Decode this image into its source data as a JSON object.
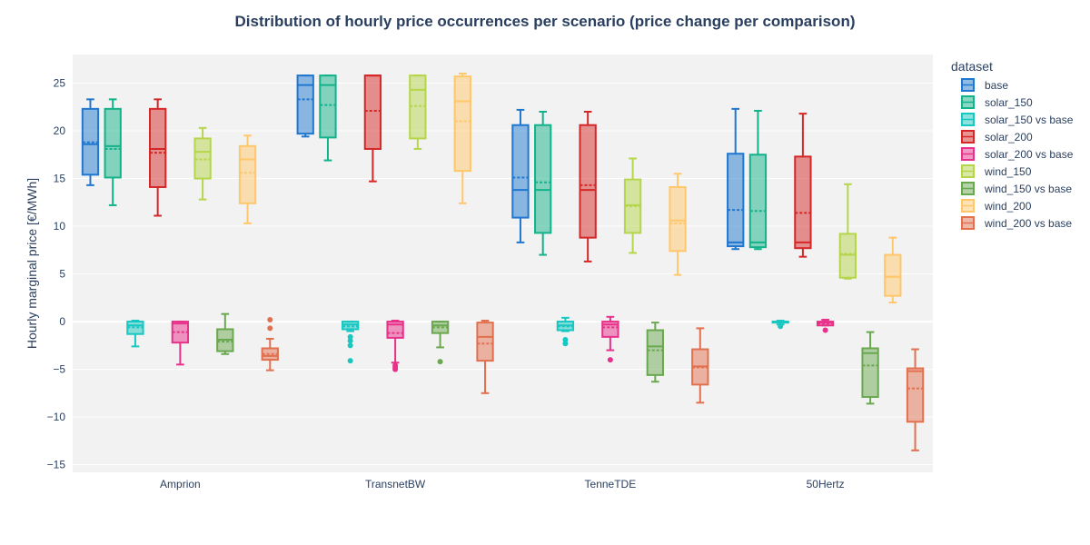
{
  "chart_data": {
    "type": "box",
    "title": "Distribution of hourly price occurrences per scenario (price change per comparison)",
    "ylabel": "Hourly marginal price [€/MWh]",
    "xlabel": "",
    "ylim": [
      -15.8,
      28
    ],
    "yticks": [
      -15,
      -10,
      -5,
      0,
      5,
      10,
      15,
      20,
      25
    ],
    "grid": true,
    "legend_title": "dataset",
    "legend_position": "right",
    "categories": [
      "Amprion",
      "TransnetBW",
      "TenneTDE",
      "50Hertz"
    ],
    "series": [
      {
        "name": "base",
        "color": "#1f77d0",
        "boxes": [
          {
            "min": 14.3,
            "q1": 15.4,
            "median": 18.6,
            "mean": 18.8,
            "q3": 22.3,
            "max": 23.3,
            "outliers": []
          },
          {
            "min": 19.4,
            "q1": 19.7,
            "median": 24.8,
            "mean": 23.3,
            "q3": 25.8,
            "max": 25.8,
            "outliers": []
          },
          {
            "min": 8.3,
            "q1": 10.9,
            "median": 13.8,
            "mean": 15.1,
            "q3": 20.6,
            "max": 22.2,
            "outliers": []
          },
          {
            "min": 7.6,
            "q1": 7.9,
            "median": 8.3,
            "mean": 11.7,
            "q3": 17.6,
            "max": 22.3,
            "outliers": []
          }
        ]
      },
      {
        "name": "solar_150",
        "color": "#12b28a",
        "boxes": [
          {
            "min": 12.2,
            "q1": 15.1,
            "median": 18.4,
            "mean": 18.1,
            "q3": 22.3,
            "max": 23.3,
            "outliers": []
          },
          {
            "min": 16.9,
            "q1": 19.3,
            "median": 24.8,
            "mean": 22.7,
            "q3": 25.8,
            "max": 25.8,
            "outliers": []
          },
          {
            "min": 7.0,
            "q1": 9.3,
            "median": 13.8,
            "mean": 14.6,
            "q3": 20.6,
            "max": 22.0,
            "outliers": []
          },
          {
            "min": 7.6,
            "q1": 7.8,
            "median": 8.3,
            "mean": 11.6,
            "q3": 17.5,
            "max": 22.1,
            "outliers": []
          }
        ]
      },
      {
        "name": "solar_150 vs base",
        "color": "#17c7c2",
        "boxes": [
          {
            "min": -2.6,
            "q1": -1.3,
            "median": -0.4,
            "mean": -0.6,
            "q3": 0.0,
            "max": 0.1,
            "outliers": []
          },
          {
            "min": -1.0,
            "q1": -0.8,
            "median": -0.3,
            "mean": -0.5,
            "q3": 0.0,
            "max": 0.0,
            "outliers": [
              -1.6,
              -2.0,
              -2.5,
              -4.1
            ]
          },
          {
            "min": -1.0,
            "q1": -0.9,
            "median": -0.4,
            "mean": -0.5,
            "q3": 0.0,
            "max": 0.4,
            "outliers": [
              -1.9,
              -2.3
            ]
          },
          {
            "min": -0.3,
            "q1": -0.1,
            "median": 0.0,
            "mean": -0.1,
            "q3": 0.0,
            "max": 0.1,
            "outliers": [
              -0.5
            ]
          }
        ]
      },
      {
        "name": "solar_200",
        "color": "#d62728",
        "boxes": [
          {
            "min": 11.1,
            "q1": 14.1,
            "median": 18.1,
            "mean": 17.7,
            "q3": 22.3,
            "max": 23.3,
            "outliers": []
          },
          {
            "min": 14.7,
            "q1": 18.1,
            "median": 25.8,
            "mean": 22.1,
            "q3": 25.8,
            "max": 25.8,
            "outliers": []
          },
          {
            "min": 6.3,
            "q1": 8.8,
            "median": 13.8,
            "mean": 14.3,
            "q3": 20.6,
            "max": 22.0,
            "outliers": []
          },
          {
            "min": 6.8,
            "q1": 7.7,
            "median": 8.3,
            "mean": 11.4,
            "q3": 17.3,
            "max": 21.8,
            "outliers": []
          }
        ]
      },
      {
        "name": "solar_200 vs base",
        "color": "#e8318a",
        "boxes": [
          {
            "min": -4.5,
            "q1": -2.2,
            "median": -0.2,
            "mean": -1.1,
            "q3": 0.0,
            "max": 0.0,
            "outliers": []
          },
          {
            "min": -4.3,
            "q1": -1.7,
            "median": -0.3,
            "mean": -1.2,
            "q3": 0.0,
            "max": 0.1,
            "outliers": [
              -4.6,
              -4.8,
              -5.0
            ]
          },
          {
            "min": -3.0,
            "q1": -1.6,
            "median": -0.3,
            "mean": -0.6,
            "q3": 0.0,
            "max": 0.5,
            "outliers": [
              -4.0
            ]
          },
          {
            "min": -0.4,
            "q1": -0.4,
            "median": -0.1,
            "mean": -0.2,
            "q3": 0.0,
            "max": 0.2,
            "outliers": [
              -0.9
            ]
          }
        ]
      },
      {
        "name": "wind_150",
        "color": "#b5d64b",
        "boxes": [
          {
            "min": 12.8,
            "q1": 15.0,
            "median": 17.8,
            "mean": 17.0,
            "q3": 19.2,
            "max": 20.3,
            "outliers": []
          },
          {
            "min": 18.1,
            "q1": 19.2,
            "median": 24.3,
            "mean": 22.6,
            "q3": 25.8,
            "max": 25.8,
            "outliers": []
          },
          {
            "min": 7.2,
            "q1": 9.3,
            "median": 12.2,
            "mean": 12.1,
            "q3": 14.9,
            "max": 17.1,
            "outliers": []
          },
          {
            "min": 4.5,
            "q1": 4.6,
            "median": 7.0,
            "mean": 7.1,
            "q3": 9.2,
            "max": 14.4,
            "outliers": []
          }
        ]
      },
      {
        "name": "wind_150 vs base",
        "color": "#6aa84f",
        "boxes": [
          {
            "min": -3.4,
            "q1": -3.1,
            "median": -1.9,
            "mean": -2.1,
            "q3": -0.8,
            "max": 0.8,
            "outliers": []
          },
          {
            "min": -2.7,
            "q1": -1.2,
            "median": -0.4,
            "mean": -0.6,
            "q3": 0.0,
            "max": 0.0,
            "outliers": [
              -4.2
            ]
          },
          {
            "min": -6.3,
            "q1": -5.6,
            "median": -2.6,
            "mean": -3.0,
            "q3": -0.9,
            "max": -0.1,
            "outliers": []
          },
          {
            "min": -8.6,
            "q1": -7.9,
            "median": -3.3,
            "mean": -4.6,
            "q3": -2.8,
            "max": -1.1,
            "outliers": []
          }
        ]
      },
      {
        "name": "wind_200",
        "color": "#ffc76b",
        "boxes": [
          {
            "min": 10.3,
            "q1": 12.4,
            "median": 17.0,
            "mean": 15.6,
            "q3": 18.4,
            "max": 19.5,
            "outliers": []
          },
          {
            "min": 12.4,
            "q1": 15.8,
            "median": 23.1,
            "mean": 21.0,
            "q3": 25.7,
            "max": 26.0,
            "outliers": []
          },
          {
            "min": 4.9,
            "q1": 7.4,
            "median": 10.6,
            "mean": 10.3,
            "q3": 14.1,
            "max": 15.5,
            "outliers": []
          },
          {
            "min": 2.0,
            "q1": 2.7,
            "median": 4.7,
            "mean": 4.7,
            "q3": 7.0,
            "max": 8.8,
            "outliers": []
          }
        ]
      },
      {
        "name": "wind_200 vs base",
        "color": "#e2704f",
        "boxes": [
          {
            "min": -5.1,
            "q1": -4.0,
            "median": -3.6,
            "mean": -3.4,
            "q3": -2.8,
            "max": -1.8,
            "outliers": [
              -0.7,
              0.2
            ]
          },
          {
            "min": -7.5,
            "q1": -4.1,
            "median": -1.6,
            "mean": -2.3,
            "q3": -0.1,
            "max": 0.1,
            "outliers": []
          },
          {
            "min": -8.5,
            "q1": -6.6,
            "median": -4.7,
            "mean": -4.8,
            "q3": -2.9,
            "max": -0.7,
            "outliers": []
          },
          {
            "min": -13.5,
            "q1": -10.5,
            "median": -5.2,
            "mean": -7.0,
            "q3": -4.9,
            "max": -2.9,
            "outliers": []
          }
        ]
      }
    ]
  }
}
